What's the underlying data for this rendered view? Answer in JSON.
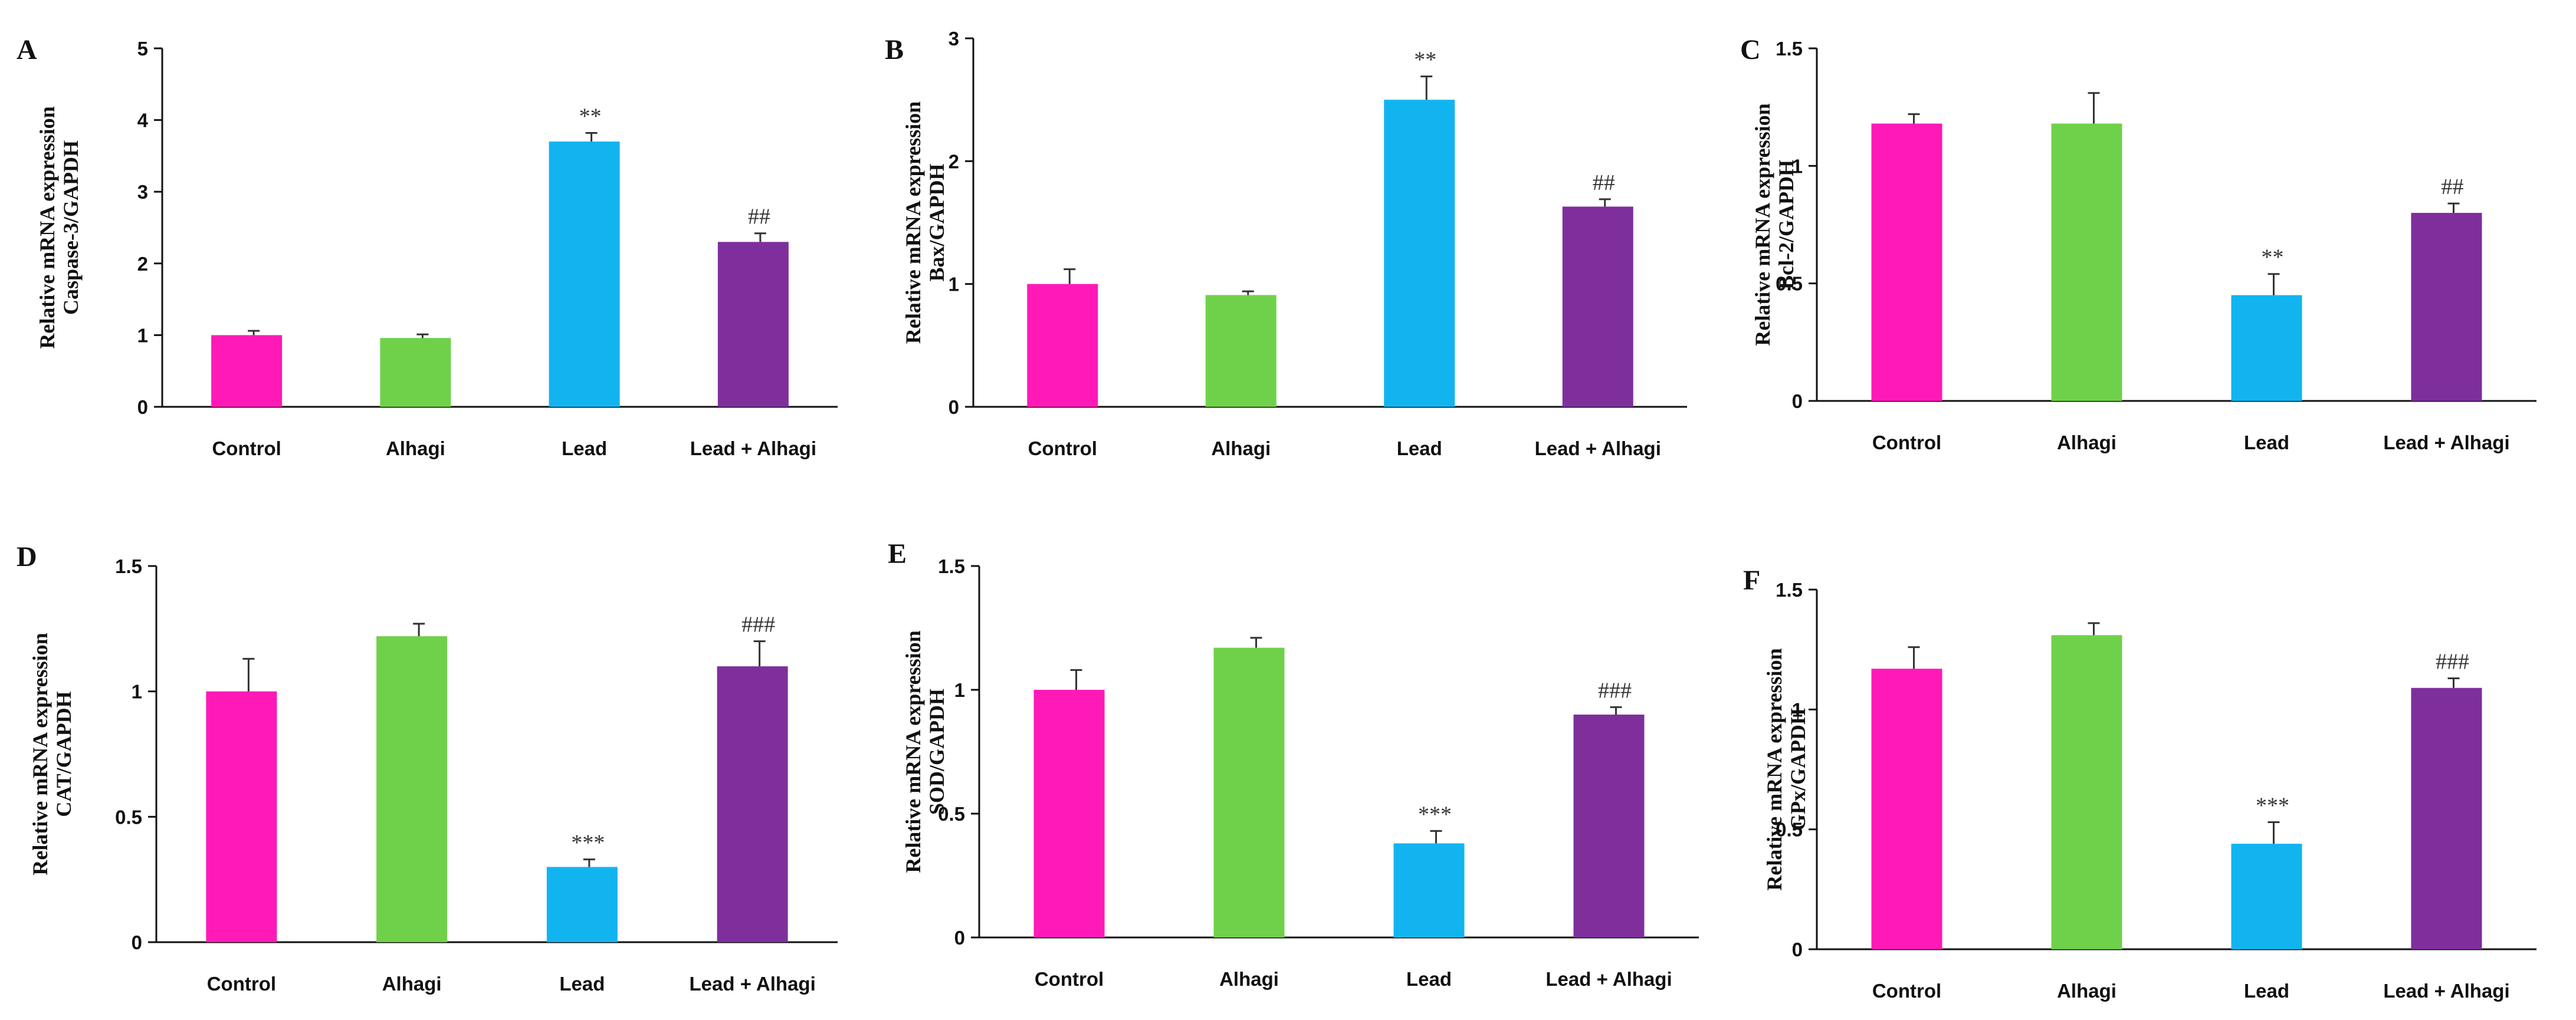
{
  "figure": {
    "groups": [
      "Control",
      "Alhagi",
      "Lead",
      "Lead + Alhagi"
    ],
    "colors": {
      "Control": "#ff1ab8",
      "Alhagi": "#6fd14a",
      "Lead": "#12b4f0",
      "Lead + Alhagi": "#7e2f9c"
    },
    "bar_icon": "bar-rect",
    "error_icon": "error-bar"
  },
  "chart_data": [
    {
      "panel": "A",
      "type": "bar",
      "ylabel_line1": "Relative mRNA expression",
      "ylabel_line2": "Caspase-3/GAPDH",
      "categories": [
        "Control",
        "Alhagi",
        "Lead",
        "Lead + Alhagi"
      ],
      "values": [
        1.0,
        0.96,
        3.7,
        2.3
      ],
      "errors": [
        0.06,
        0.05,
        0.12,
        0.12
      ],
      "significance": [
        "",
        "",
        "**",
        "##"
      ],
      "ylim": [
        0,
        5
      ],
      "ticks": [
        0,
        1,
        2,
        3,
        4,
        5
      ],
      "tick_labels": [
        "0",
        "1",
        "2",
        "3",
        "4",
        "5"
      ]
    },
    {
      "panel": "B",
      "type": "bar",
      "ylabel_line1": "Relative mRNA expression",
      "ylabel_line2": "Bax/GAPDH",
      "categories": [
        "Control",
        "Alhagi",
        "Lead",
        "Lead + Alhagi"
      ],
      "values": [
        1.0,
        0.91,
        2.5,
        1.63
      ],
      "errors": [
        0.12,
        0.03,
        0.19,
        0.06
      ],
      "significance": [
        "",
        "",
        "**",
        "##"
      ],
      "ylim": [
        0,
        3
      ],
      "ticks": [
        0,
        1,
        2,
        3
      ],
      "tick_labels": [
        "0",
        "1",
        "2",
        "3"
      ]
    },
    {
      "panel": "C",
      "type": "bar",
      "ylabel_line1": "Relative mRNA expression",
      "ylabel_line2": "Bcl-2/GAPDH",
      "categories": [
        "Control",
        "Alhagi",
        "Lead",
        "Lead + Alhagi"
      ],
      "values": [
        1.18,
        1.18,
        0.45,
        0.8
      ],
      "errors": [
        0.04,
        0.13,
        0.09,
        0.04
      ],
      "significance": [
        "",
        "",
        "**",
        "##"
      ],
      "ylim": [
        0,
        1.5
      ],
      "ticks": [
        0,
        0.5,
        1,
        1.5
      ],
      "tick_labels": [
        "0",
        "0.5",
        "1",
        "1.5"
      ]
    },
    {
      "panel": "D",
      "type": "bar",
      "ylabel_line1": "Relative mRNA expression",
      "ylabel_line2": "CAT/GAPDH",
      "categories": [
        "Control",
        "Alhagi",
        "Lead",
        "Lead + Alhagi"
      ],
      "values": [
        1.0,
        1.22,
        0.3,
        1.1
      ],
      "errors": [
        0.13,
        0.05,
        0.03,
        0.1
      ],
      "significance": [
        "",
        "",
        "***",
        "###"
      ],
      "ylim": [
        0,
        1.5
      ],
      "ticks": [
        0,
        0.5,
        1,
        1.5
      ],
      "tick_labels": [
        "0",
        "0.5",
        "1",
        "1.5"
      ]
    },
    {
      "panel": "E",
      "type": "bar",
      "ylabel_line1": "Relative mRNA expression",
      "ylabel_line2": "SOD/GAPDH",
      "categories": [
        "Control",
        "Alhagi",
        "Lead",
        "Lead + Alhagi"
      ],
      "values": [
        1.0,
        1.17,
        0.38,
        0.9
      ],
      "errors": [
        0.08,
        0.04,
        0.05,
        0.03
      ],
      "significance": [
        "",
        "",
        "***",
        "###"
      ],
      "ylim": [
        0,
        1.5
      ],
      "ticks": [
        0,
        0.5,
        1,
        1.5
      ],
      "tick_labels": [
        "0",
        "0.5",
        "1",
        "1.5"
      ]
    },
    {
      "panel": "F",
      "type": "bar",
      "ylabel_line1": "Relative  mRNA expression",
      "ylabel_line2": "GPx/GAPDH",
      "categories": [
        "Control",
        "Alhagi",
        "Lead",
        "Lead + Alhagi"
      ],
      "values": [
        1.17,
        1.31,
        0.44,
        1.09
      ],
      "errors": [
        0.09,
        0.05,
        0.09,
        0.04
      ],
      "significance": [
        "",
        "",
        "***",
        "###"
      ],
      "ylim": [
        0,
        1.5
      ],
      "ticks": [
        0,
        0.5,
        1,
        1.5
      ],
      "tick_labels": [
        "0",
        "0.5",
        "1",
        "1.5"
      ]
    }
  ]
}
